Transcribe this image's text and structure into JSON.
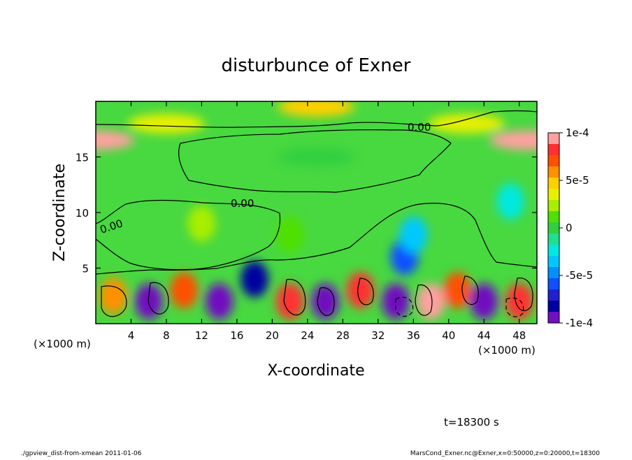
{
  "footer": {
    "left": "./gpview_dist-from-xmean  2011-01-06",
    "right": "MarsCond_Exner.nc@Exner,x=0:50000,z=0:20000,t=18300"
  },
  "time_label": "t=18300 s",
  "chart_data": {
    "type": "heatmap",
    "title": "disturbunce of Exner",
    "xlabel": "X-coordinate",
    "ylabel": "Z-coordinate",
    "x_unit_label": "(×1000 m)",
    "x_unit_label_right": "(×1000 m)",
    "xlim": [
      0,
      50
    ],
    "ylim": [
      0,
      20
    ],
    "x_ticks": [
      4,
      8,
      12,
      16,
      20,
      24,
      28,
      32,
      36,
      40,
      44,
      48
    ],
    "x_tick_labels": [
      "4",
      "8",
      "12",
      "16",
      "20",
      "24",
      "28",
      "32",
      "36",
      "40",
      "44",
      "48"
    ],
    "y_ticks": [
      5,
      10,
      15
    ],
    "y_tick_labels": [
      "5",
      "10",
      "15"
    ],
    "contour_labels": [
      "0.00",
      "0.00",
      "0.00"
    ],
    "colorbar": {
      "range": [
        -0.0001,
        0.0001
      ],
      "tick_values": [
        0.0001,
        5e-05,
        0,
        -5e-05,
        -0.0001
      ],
      "tick_labels": [
        "1e-4",
        "5e-5",
        "0",
        "-5e-5",
        "-1e-4"
      ],
      "colors": [
        "#ffa0a0",
        "#ff3030",
        "#ff5000",
        "#ff9000",
        "#ffd000",
        "#e8f000",
        "#a8ee00",
        "#50e000",
        "#30d040",
        "#20e090",
        "#00e8e0",
        "#00c8ff",
        "#0090ff",
        "#1050ff",
        "#2020d0",
        "#0000a0",
        "#7010c0"
      ]
    },
    "regions": [
      {
        "x": 8,
        "y": 18,
        "v": 3e-05
      },
      {
        "x": 42,
        "y": 18,
        "v": 3e-05
      },
      {
        "x": 0,
        "y": 16.5,
        "v": 9e-05
      },
      {
        "x": 49,
        "y": 16.5,
        "v": 9e-05
      },
      {
        "x": 25,
        "y": 19.5,
        "v": 5e-05
      },
      {
        "x": 25,
        "y": 15,
        "v": 5e-06
      },
      {
        "x": 12,
        "y": 9,
        "v": 2e-05
      },
      {
        "x": 22,
        "y": 8,
        "v": 1e-05
      },
      {
        "x": 35,
        "y": 6,
        "v": -6e-05
      },
      {
        "x": 36,
        "y": 8,
        "v": -4e-05
      },
      {
        "x": 47,
        "y": 11,
        "v": -2e-05
      },
      {
        "x": 2,
        "y": 2.5,
        "v": 6e-05
      },
      {
        "x": 6,
        "y": 2,
        "v": -0.0001
      },
      {
        "x": 10,
        "y": 3,
        "v": 7e-05
      },
      {
        "x": 14,
        "y": 2,
        "v": -9e-05
      },
      {
        "x": 18,
        "y": 4,
        "v": -8e-05
      },
      {
        "x": 22,
        "y": 2,
        "v": 8e-05
      },
      {
        "x": 26,
        "y": 2,
        "v": -9e-05
      },
      {
        "x": 30,
        "y": 3,
        "v": 8e-05
      },
      {
        "x": 34,
        "y": 2,
        "v": -0.0001
      },
      {
        "x": 38,
        "y": 2,
        "v": 9e-05
      },
      {
        "x": 41,
        "y": 3,
        "v": 7e-05
      },
      {
        "x": 44,
        "y": 2,
        "v": -9e-05
      },
      {
        "x": 48,
        "y": 2,
        "v": 8e-05
      }
    ]
  }
}
